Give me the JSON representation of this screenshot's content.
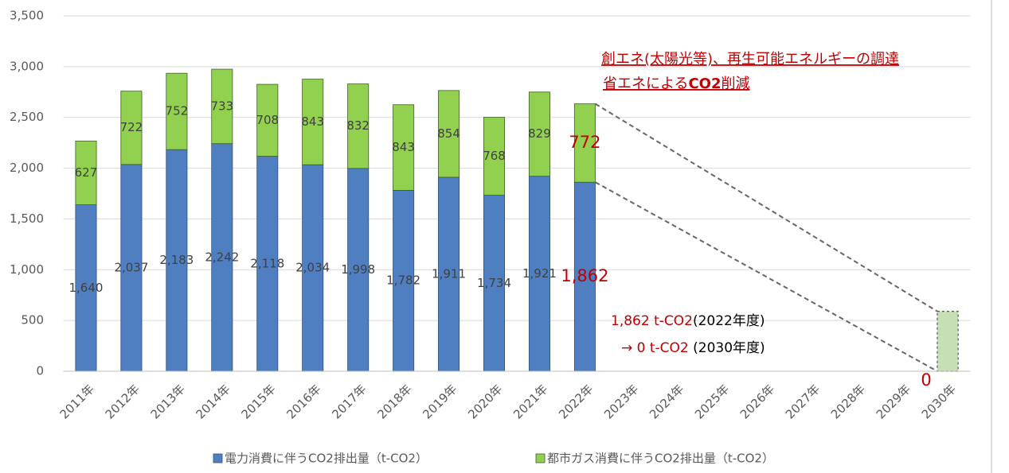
{
  "chart_data": {
    "type": "stacked-bar",
    "categories": [
      "2011年",
      "2012年",
      "2013年",
      "2014年",
      "2015年",
      "2016年",
      "2017年",
      "2018年",
      "2019年",
      "2020年",
      "2021年",
      "2022年",
      "2023年",
      "2024年",
      "2025年",
      "2026年",
      "2027年",
      "2028年",
      "2029年",
      "2030年"
    ],
    "series": [
      {
        "name": "電力消費に伴うCO2排出量（t-CO2）",
        "color": "#4f7fc0",
        "border": "#2f4f7a",
        "values": [
          1640,
          2037,
          2183,
          2242,
          2118,
          2034,
          1998,
          1782,
          1911,
          1734,
          1921,
          1862,
          null,
          null,
          null,
          null,
          null,
          null,
          null,
          0
        ],
        "value_labels": [
          "1,640",
          "2,037",
          "2,183",
          "2,242",
          "2,118",
          "2,034",
          "1,998",
          "1,782",
          "1,911",
          "1,734",
          "1,921",
          "1,862",
          null,
          null,
          null,
          null,
          null,
          null,
          null,
          "0"
        ]
      },
      {
        "name": "都市ガス消費に伴うCO2排出量（t-CO2）",
        "color": "#92d050",
        "border": "#3f5f2a",
        "values": [
          627,
          722,
          752,
          733,
          708,
          843,
          832,
          843,
          854,
          768,
          829,
          772,
          null,
          null,
          null,
          null,
          null,
          null,
          null,
          590
        ],
        "value_labels": [
          "627",
          "722",
          "752",
          "733",
          "708",
          "843",
          "832",
          "843",
          "854",
          "768",
          "829",
          "772",
          null,
          null,
          null,
          null,
          null,
          null,
          null,
          null
        ]
      }
    ],
    "highlight": {
      "indices": [
        11,
        19
      ],
      "label_color": "#c00000"
    },
    "projection": {
      "index": 19,
      "fill": "#c6e0b4",
      "dashed": true
    },
    "ylim": [
      0,
      3500
    ],
    "yticks": [
      0,
      500,
      {
        "value": 1000,
        "label": "1,000"
      },
      {
        "value": 1500,
        "label": "1,500"
      },
      {
        "value": 2000,
        "label": "2,000"
      },
      {
        "value": 2500,
        "label": "2,500"
      },
      {
        "value": 3000,
        "label": "3,000"
      },
      {
        "value": 3500,
        "label": "3,500"
      }
    ],
    "grid": true,
    "legend": "bottom",
    "annotations": [
      {
        "parts": [
          {
            "text": "創エネ(太陽光等)、再生可能エネルギーの調達",
            "color": "#c00000"
          }
        ]
      },
      {
        "parts": [
          {
            "text": "省エネによる",
            "color": "#c00000"
          },
          {
            "text": "CO2",
            "color": "#c00000",
            "bold": true
          },
          {
            "text": "削減",
            "color": "#c00000"
          }
        ]
      },
      {
        "parts": [
          {
            "text": "1,862 t-CO2",
            "color": "#c00000"
          },
          {
            "text": "(2022年度)",
            "color": "#000000"
          }
        ]
      },
      {
        "parts": [
          {
            "text": "→ 0 t-CO2",
            "color": "#c00000"
          },
          {
            "text": " (2030年度)",
            "color": "#000000"
          }
        ]
      }
    ]
  }
}
